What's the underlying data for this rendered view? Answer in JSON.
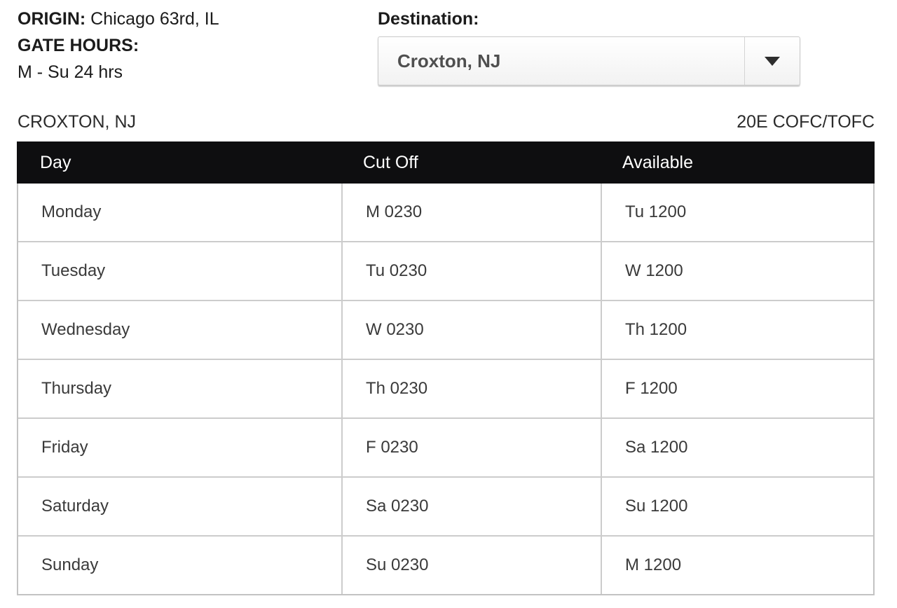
{
  "origin_info": {
    "origin_label": "ORIGIN:",
    "origin_value": " Chicago 63rd, IL",
    "gate_hours_label": "GATE HOURS:",
    "gate_hours_value": "M - Su 24 hrs"
  },
  "destination": {
    "label": "Destination:",
    "selected": "Croxton, NJ"
  },
  "section": {
    "terminal_name": "CROXTON, NJ",
    "service_code": "20E COFC/TOFC"
  },
  "table": {
    "headers": {
      "day": "Day",
      "cutoff": "Cut Off",
      "available": "Available"
    },
    "rows": [
      {
        "day": "Monday",
        "cutoff": "M 0230",
        "available": "Tu 1200"
      },
      {
        "day": "Tuesday",
        "cutoff": "Tu 0230",
        "available": "W 1200"
      },
      {
        "day": "Wednesday",
        "cutoff": "W 0230",
        "available": "Th 1200"
      },
      {
        "day": "Thursday",
        "cutoff": "Th 0230",
        "available": "F 1200"
      },
      {
        "day": "Friday",
        "cutoff": "F 0230",
        "available": "Sa 1200"
      },
      {
        "day": "Saturday",
        "cutoff": "Sa 0230",
        "available": "Su 1200"
      },
      {
        "day": "Sunday",
        "cutoff": "Su 0230",
        "available": "M 1200"
      }
    ]
  },
  "colors": {
    "table_header_bg": "#0e0e10",
    "table_header_text": "#ffffff",
    "table_border": "#cccccc",
    "dropdown_border": "#c9c9c9",
    "dropdown_text": "#4f4f4f",
    "arrow": "#2e2e2e"
  },
  "icons": {
    "dropdown_arrow": "chevron-down-icon"
  }
}
